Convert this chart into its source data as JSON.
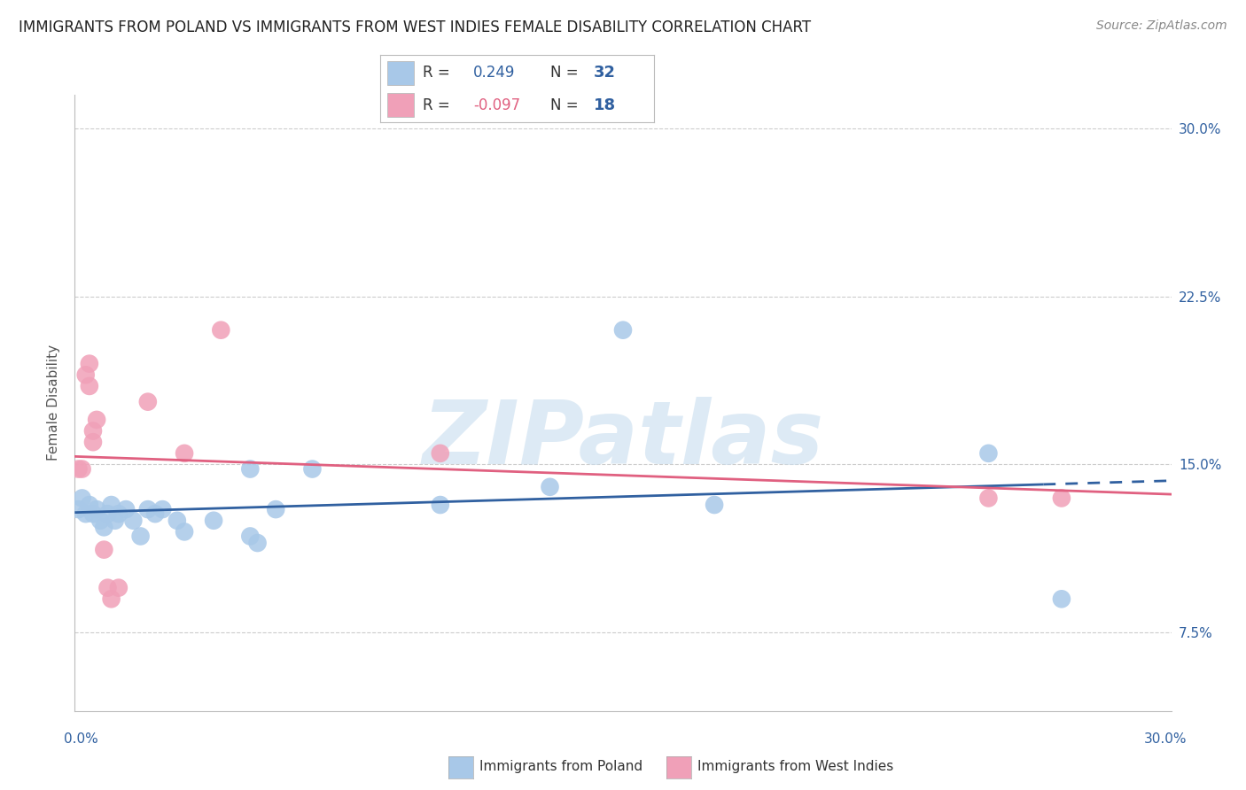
{
  "title": "IMMIGRANTS FROM POLAND VS IMMIGRANTS FROM WEST INDIES FEMALE DISABILITY CORRELATION CHART",
  "source": "Source: ZipAtlas.com",
  "ylabel": "Female Disability",
  "xlim": [
    0.0,
    0.3
  ],
  "ylim": [
    0.04,
    0.315
  ],
  "yticks": [
    0.075,
    0.15,
    0.225,
    0.3
  ],
  "ytick_labels": [
    "7.5%",
    "15.0%",
    "22.5%",
    "30.0%"
  ],
  "xticks": [
    0.0,
    0.05,
    0.1,
    0.15,
    0.2,
    0.25,
    0.3
  ],
  "blue_R": "0.249",
  "blue_N": "32",
  "pink_R": "-0.097",
  "pink_N": "18",
  "blue_color": "#a8c8e8",
  "pink_color": "#f0a0b8",
  "blue_line_color": "#3060a0",
  "pink_line_color": "#e06080",
  "blue_points_x": [
    0.001,
    0.002,
    0.003,
    0.004,
    0.005,
    0.006,
    0.007,
    0.008,
    0.009,
    0.01,
    0.011,
    0.012,
    0.014,
    0.016,
    0.018,
    0.02,
    0.022,
    0.024,
    0.028,
    0.03,
    0.038,
    0.048,
    0.05,
    0.055,
    0.1,
    0.13,
    0.15,
    0.175,
    0.25,
    0.27,
    0.048,
    0.065
  ],
  "blue_points_y": [
    0.13,
    0.135,
    0.128,
    0.132,
    0.128,
    0.13,
    0.125,
    0.122,
    0.128,
    0.132,
    0.125,
    0.128,
    0.13,
    0.125,
    0.118,
    0.13,
    0.128,
    0.13,
    0.125,
    0.12,
    0.125,
    0.118,
    0.115,
    0.13,
    0.132,
    0.14,
    0.21,
    0.132,
    0.155,
    0.09,
    0.148,
    0.148
  ],
  "pink_points_x": [
    0.001,
    0.002,
    0.003,
    0.004,
    0.004,
    0.005,
    0.005,
    0.006,
    0.008,
    0.009,
    0.01,
    0.012,
    0.02,
    0.03,
    0.04,
    0.1,
    0.25,
    0.27
  ],
  "pink_points_y": [
    0.148,
    0.148,
    0.19,
    0.195,
    0.185,
    0.16,
    0.165,
    0.17,
    0.112,
    0.095,
    0.09,
    0.095,
    0.178,
    0.155,
    0.21,
    0.155,
    0.135,
    0.135
  ],
  "background_color": "#ffffff",
  "grid_color": "#cccccc",
  "watermark_text": "ZIPatlas",
  "title_fontsize": 12,
  "source_fontsize": 10,
  "ylabel_fontsize": 11,
  "tick_fontsize": 11,
  "legend_fontsize": 12
}
